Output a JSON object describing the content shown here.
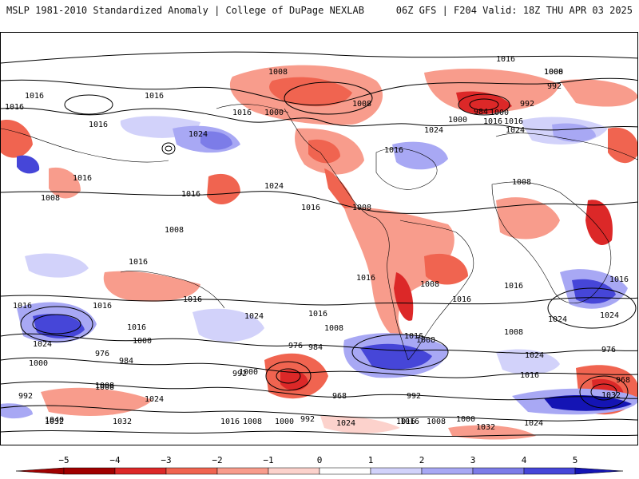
{
  "header": {
    "title_left": "MSLP 1981-2010 Standardized Anomaly | College of DuPage NEXLAB",
    "title_right": "06Z GFS | F204 Valid: 18Z THU APR 03 2025"
  },
  "colors": {
    "neg5": "#a00000",
    "neg4": "#dc2828",
    "neg3": "#f06450",
    "neg2": "#f89c8c",
    "neg1": "#fcd2cc",
    "zero": "#ffffff",
    "pos1": "#d2d2fa",
    "pos2": "#a8a8f4",
    "pos3": "#7c7ce8",
    "pos4": "#4646d8",
    "pos5": "#1414b4"
  },
  "colorbar": {
    "ticks": [
      "−5",
      "−4",
      "−3",
      "−2",
      "−1",
      "0",
      "1",
      "2",
      "3",
      "4",
      "5"
    ]
  },
  "contour_labels": [
    "1016",
    "1016",
    "1016",
    "1008",
    "1016",
    "1000",
    "1016",
    "1008",
    "1008",
    "1000",
    "992",
    "984",
    "1000",
    "1016",
    "1024",
    "992",
    "1016",
    "1024",
    "1000",
    "1016",
    "1008",
    "1016",
    "1024",
    "1024",
    "1016",
    "1016",
    "1016",
    "1016",
    "1008",
    "1016",
    "1008",
    "1016",
    "1008",
    "1016",
    "1008",
    "1016",
    "1008",
    "1024",
    "1016",
    "1016",
    "1024",
    "1016",
    "1016",
    "1024",
    "1016",
    "1008",
    "1000",
    "992",
    "976",
    "984",
    "1008",
    "1000",
    "1032",
    "1024",
    "1040",
    "1032",
    "1016",
    "1008",
    "1000",
    "992",
    "1024",
    "1016",
    "1032",
    "1024",
    "1008",
    "1016",
    "1000",
    "968",
    "976",
    "984",
    "992",
    "1008",
    "1000",
    "992",
    "976",
    "968",
    "1032",
    "1016",
    "1024",
    "1008",
    "1024",
    "1016"
  ]
}
